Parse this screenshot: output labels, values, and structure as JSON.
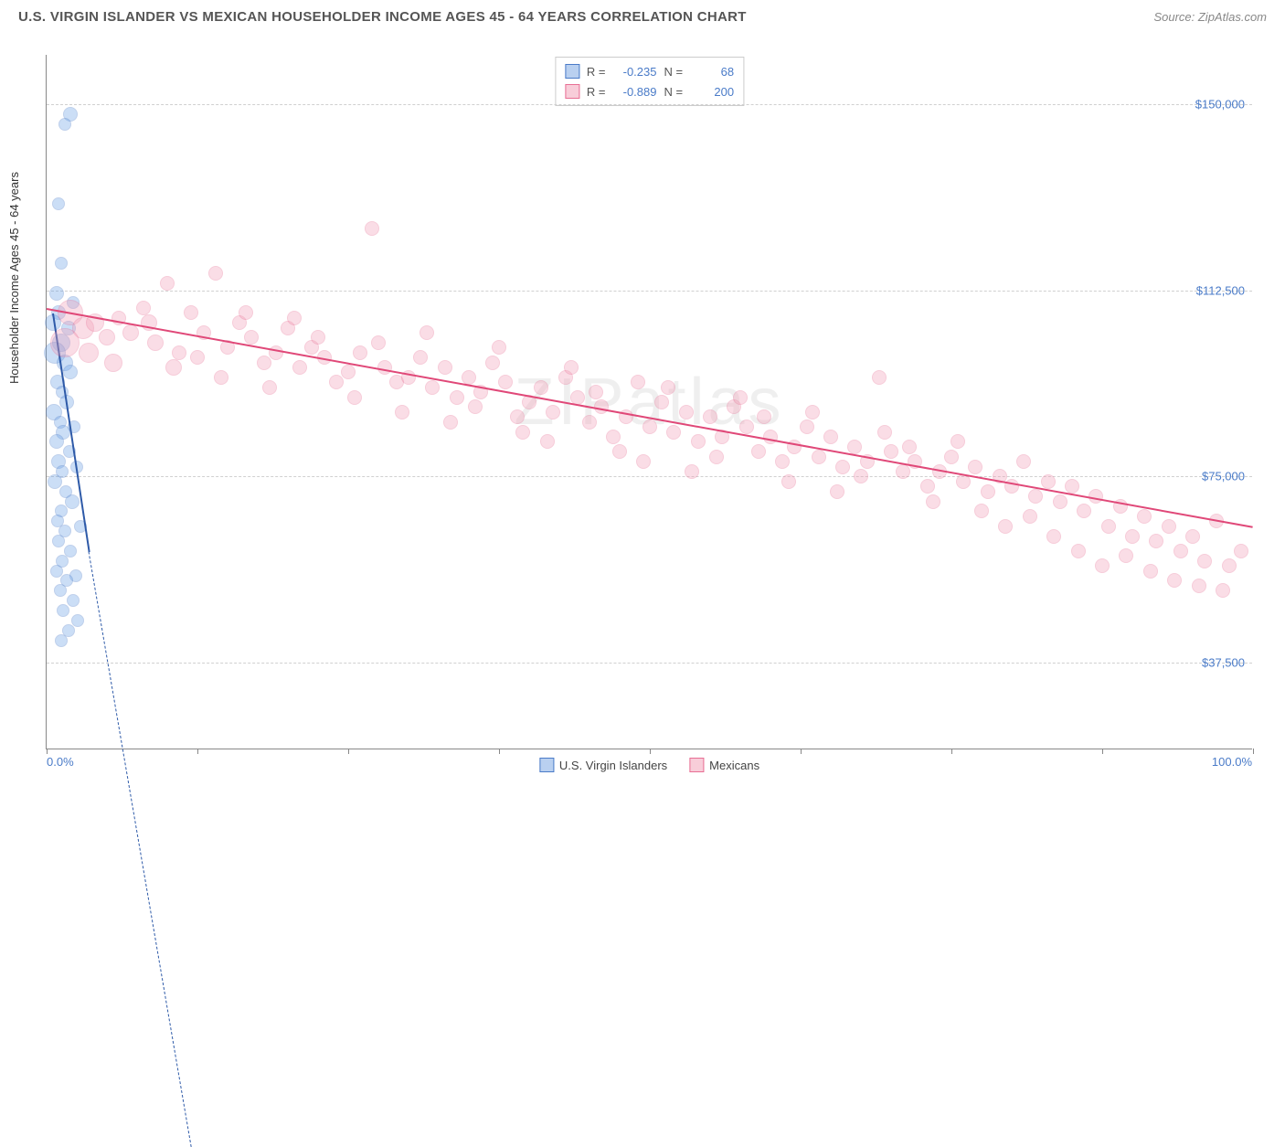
{
  "title": "U.S. VIRGIN ISLANDER VS MEXICAN HOUSEHOLDER INCOME AGES 45 - 64 YEARS CORRELATION CHART",
  "source": "Source: ZipAtlas.com",
  "ylabel": "Householder Income Ages 45 - 64 years",
  "watermark": "ZIPatlas",
  "chart": {
    "type": "scatter",
    "xlim": [
      0,
      100
    ],
    "ylim": [
      20000,
      160000
    ],
    "y_gridlines": [
      37500,
      75000,
      112500,
      150000
    ],
    "ytick_labels": [
      "$37,500",
      "$75,000",
      "$112,500",
      "$150,000"
    ],
    "xtick_positions": [
      0,
      12.5,
      25,
      37.5,
      50,
      62.5,
      75,
      87.5,
      100
    ],
    "x_left_label": "0.0%",
    "x_right_label": "100.0%",
    "background_color": "#ffffff",
    "grid_color": "#d0d0d0",
    "axis_color": "#888888"
  },
  "series": [
    {
      "name": "U.S. Virgin Islanders",
      "fill_color": "#6da3e8",
      "stroke_color": "#4a7bc8",
      "fill_opacity": 0.35,
      "R": "-0.235",
      "N": "68",
      "trend": {
        "x1": 0.5,
        "y1": 108000,
        "x2": 3.5,
        "y2": 60000,
        "color": "#2e5aa8",
        "dash_ext_x2": 12,
        "dash_ext_y2": -60000
      },
      "points": [
        {
          "x": 2.0,
          "y": 148000,
          "r": 8
        },
        {
          "x": 1.5,
          "y": 146000,
          "r": 7
        },
        {
          "x": 1.0,
          "y": 130000,
          "r": 7
        },
        {
          "x": 1.2,
          "y": 118000,
          "r": 7
        },
        {
          "x": 0.8,
          "y": 112000,
          "r": 8
        },
        {
          "x": 2.2,
          "y": 110000,
          "r": 7
        },
        {
          "x": 1.0,
          "y": 108000,
          "r": 8
        },
        {
          "x": 0.5,
          "y": 106000,
          "r": 9
        },
        {
          "x": 1.8,
          "y": 105000,
          "r": 8
        },
        {
          "x": 1.2,
          "y": 102000,
          "r": 10
        },
        {
          "x": 0.7,
          "y": 100000,
          "r": 12
        },
        {
          "x": 1.5,
          "y": 98000,
          "r": 9
        },
        {
          "x": 2.0,
          "y": 96000,
          "r": 8
        },
        {
          "x": 0.9,
          "y": 94000,
          "r": 8
        },
        {
          "x": 1.3,
          "y": 92000,
          "r": 7
        },
        {
          "x": 1.7,
          "y": 90000,
          "r": 8
        },
        {
          "x": 0.6,
          "y": 88000,
          "r": 9
        },
        {
          "x": 1.1,
          "y": 86000,
          "r": 7
        },
        {
          "x": 2.3,
          "y": 85000,
          "r": 7
        },
        {
          "x": 1.4,
          "y": 84000,
          "r": 8
        },
        {
          "x": 0.8,
          "y": 82000,
          "r": 8
        },
        {
          "x": 1.9,
          "y": 80000,
          "r": 7
        },
        {
          "x": 1.0,
          "y": 78000,
          "r": 8
        },
        {
          "x": 2.5,
          "y": 77000,
          "r": 7
        },
        {
          "x": 1.3,
          "y": 76000,
          "r": 7
        },
        {
          "x": 0.7,
          "y": 74000,
          "r": 8
        },
        {
          "x": 1.6,
          "y": 72000,
          "r": 7
        },
        {
          "x": 2.1,
          "y": 70000,
          "r": 8
        },
        {
          "x": 1.2,
          "y": 68000,
          "r": 7
        },
        {
          "x": 0.9,
          "y": 66000,
          "r": 7
        },
        {
          "x": 2.8,
          "y": 65000,
          "r": 7
        },
        {
          "x": 1.5,
          "y": 64000,
          "r": 7
        },
        {
          "x": 1.0,
          "y": 62000,
          "r": 7
        },
        {
          "x": 2.0,
          "y": 60000,
          "r": 7
        },
        {
          "x": 1.3,
          "y": 58000,
          "r": 7
        },
        {
          "x": 0.8,
          "y": 56000,
          "r": 7
        },
        {
          "x": 2.4,
          "y": 55000,
          "r": 7
        },
        {
          "x": 1.7,
          "y": 54000,
          "r": 7
        },
        {
          "x": 1.1,
          "y": 52000,
          "r": 7
        },
        {
          "x": 2.2,
          "y": 50000,
          "r": 7
        },
        {
          "x": 1.4,
          "y": 48000,
          "r": 7
        },
        {
          "x": 2.6,
          "y": 46000,
          "r": 7
        },
        {
          "x": 1.8,
          "y": 44000,
          "r": 7
        },
        {
          "x": 1.2,
          "y": 42000,
          "r": 7
        }
      ]
    },
    {
      "name": "Mexicans",
      "fill_color": "#f2a0b8",
      "stroke_color": "#e86e94",
      "fill_opacity": 0.35,
      "R": "-0.889",
      "N": "200",
      "trend": {
        "x1": 0,
        "y1": 109000,
        "x2": 100,
        "y2": 65000,
        "color": "#e04878"
      },
      "points": [
        {
          "x": 2,
          "y": 108000,
          "r": 14
        },
        {
          "x": 3,
          "y": 105000,
          "r": 12
        },
        {
          "x": 1.5,
          "y": 102000,
          "r": 16
        },
        {
          "x": 4,
          "y": 106000,
          "r": 10
        },
        {
          "x": 5,
          "y": 103000,
          "r": 9
        },
        {
          "x": 3.5,
          "y": 100000,
          "r": 11
        },
        {
          "x": 6,
          "y": 107000,
          "r": 8
        },
        {
          "x": 7,
          "y": 104000,
          "r": 9
        },
        {
          "x": 5.5,
          "y": 98000,
          "r": 10
        },
        {
          "x": 8,
          "y": 109000,
          "r": 8
        },
        {
          "x": 9,
          "y": 102000,
          "r": 9
        },
        {
          "x": 10,
          "y": 114000,
          "r": 8
        },
        {
          "x": 8.5,
          "y": 106000,
          "r": 9
        },
        {
          "x": 11,
          "y": 100000,
          "r": 8
        },
        {
          "x": 12,
          "y": 108000,
          "r": 8
        },
        {
          "x": 10.5,
          "y": 97000,
          "r": 9
        },
        {
          "x": 13,
          "y": 104000,
          "r": 8
        },
        {
          "x": 14,
          "y": 116000,
          "r": 8
        },
        {
          "x": 12.5,
          "y": 99000,
          "r": 8
        },
        {
          "x": 15,
          "y": 101000,
          "r": 8
        },
        {
          "x": 16,
          "y": 106000,
          "r": 8
        },
        {
          "x": 14.5,
          "y": 95000,
          "r": 8
        },
        {
          "x": 17,
          "y": 103000,
          "r": 8
        },
        {
          "x": 18,
          "y": 98000,
          "r": 8
        },
        {
          "x": 16.5,
          "y": 108000,
          "r": 8
        },
        {
          "x": 19,
          "y": 100000,
          "r": 8
        },
        {
          "x": 20,
          "y": 105000,
          "r": 8
        },
        {
          "x": 18.5,
          "y": 93000,
          "r": 8
        },
        {
          "x": 21,
          "y": 97000,
          "r": 8
        },
        {
          "x": 22,
          "y": 101000,
          "r": 8
        },
        {
          "x": 20.5,
          "y": 107000,
          "r": 8
        },
        {
          "x": 23,
          "y": 99000,
          "r": 8
        },
        {
          "x": 24,
          "y": 94000,
          "r": 8
        },
        {
          "x": 22.5,
          "y": 103000,
          "r": 8
        },
        {
          "x": 25,
          "y": 96000,
          "r": 8
        },
        {
          "x": 26,
          "y": 100000,
          "r": 8
        },
        {
          "x": 27,
          "y": 125000,
          "r": 8
        },
        {
          "x": 25.5,
          "y": 91000,
          "r": 8
        },
        {
          "x": 28,
          "y": 97000,
          "r": 8
        },
        {
          "x": 29,
          "y": 94000,
          "r": 8
        },
        {
          "x": 27.5,
          "y": 102000,
          "r": 8
        },
        {
          "x": 30,
          "y": 95000,
          "r": 8
        },
        {
          "x": 31,
          "y": 99000,
          "r": 8
        },
        {
          "x": 29.5,
          "y": 88000,
          "r": 8
        },
        {
          "x": 32,
          "y": 93000,
          "r": 8
        },
        {
          "x": 33,
          "y": 97000,
          "r": 8
        },
        {
          "x": 31.5,
          "y": 104000,
          "r": 8
        },
        {
          "x": 34,
          "y": 91000,
          "r": 8
        },
        {
          "x": 35,
          "y": 95000,
          "r": 8
        },
        {
          "x": 33.5,
          "y": 86000,
          "r": 8
        },
        {
          "x": 36,
          "y": 92000,
          "r": 8
        },
        {
          "x": 37,
          "y": 98000,
          "r": 8
        },
        {
          "x": 35.5,
          "y": 89000,
          "r": 8
        },
        {
          "x": 38,
          "y": 94000,
          "r": 8
        },
        {
          "x": 39,
          "y": 87000,
          "r": 8
        },
        {
          "x": 37.5,
          "y": 101000,
          "r": 8
        },
        {
          "x": 40,
          "y": 90000,
          "r": 8
        },
        {
          "x": 41,
          "y": 93000,
          "r": 8
        },
        {
          "x": 39.5,
          "y": 84000,
          "r": 8
        },
        {
          "x": 42,
          "y": 88000,
          "r": 8
        },
        {
          "x": 43,
          "y": 95000,
          "r": 8
        },
        {
          "x": 41.5,
          "y": 82000,
          "r": 8
        },
        {
          "x": 44,
          "y": 91000,
          "r": 8
        },
        {
          "x": 45,
          "y": 86000,
          "r": 8
        },
        {
          "x": 43.5,
          "y": 97000,
          "r": 8
        },
        {
          "x": 46,
          "y": 89000,
          "r": 8
        },
        {
          "x": 47,
          "y": 83000,
          "r": 8
        },
        {
          "x": 45.5,
          "y": 92000,
          "r": 8
        },
        {
          "x": 48,
          "y": 87000,
          "r": 8
        },
        {
          "x": 49,
          "y": 94000,
          "r": 8
        },
        {
          "x": 47.5,
          "y": 80000,
          "r": 8
        },
        {
          "x": 50,
          "y": 85000,
          "r": 8
        },
        {
          "x": 51,
          "y": 90000,
          "r": 8
        },
        {
          "x": 49.5,
          "y": 78000,
          "r": 8
        },
        {
          "x": 52,
          "y": 84000,
          "r": 8
        },
        {
          "x": 53,
          "y": 88000,
          "r": 8
        },
        {
          "x": 51.5,
          "y": 93000,
          "r": 8
        },
        {
          "x": 54,
          "y": 82000,
          "r": 8
        },
        {
          "x": 55,
          "y": 87000,
          "r": 8
        },
        {
          "x": 53.5,
          "y": 76000,
          "r": 8
        },
        {
          "x": 56,
          "y": 83000,
          "r": 8
        },
        {
          "x": 57,
          "y": 89000,
          "r": 8
        },
        {
          "x": 55.5,
          "y": 79000,
          "r": 8
        },
        {
          "x": 58,
          "y": 85000,
          "r": 8
        },
        {
          "x": 59,
          "y": 80000,
          "r": 8
        },
        {
          "x": 57.5,
          "y": 91000,
          "r": 8
        },
        {
          "x": 60,
          "y": 83000,
          "r": 8
        },
        {
          "x": 61,
          "y": 78000,
          "r": 8
        },
        {
          "x": 59.5,
          "y": 87000,
          "r": 8
        },
        {
          "x": 62,
          "y": 81000,
          "r": 8
        },
        {
          "x": 63,
          "y": 85000,
          "r": 8
        },
        {
          "x": 61.5,
          "y": 74000,
          "r": 8
        },
        {
          "x": 64,
          "y": 79000,
          "r": 8
        },
        {
          "x": 65,
          "y": 83000,
          "r": 8
        },
        {
          "x": 63.5,
          "y": 88000,
          "r": 8
        },
        {
          "x": 66,
          "y": 77000,
          "r": 8
        },
        {
          "x": 67,
          "y": 81000,
          "r": 8
        },
        {
          "x": 65.5,
          "y": 72000,
          "r": 8
        },
        {
          "x": 68,
          "y": 78000,
          "r": 8
        },
        {
          "x": 69,
          "y": 95000,
          "r": 8
        },
        {
          "x": 67.5,
          "y": 75000,
          "r": 8
        },
        {
          "x": 70,
          "y": 80000,
          "r": 8
        },
        {
          "x": 71,
          "y": 76000,
          "r": 8
        },
        {
          "x": 69.5,
          "y": 84000,
          "r": 8
        },
        {
          "x": 72,
          "y": 78000,
          "r": 8
        },
        {
          "x": 73,
          "y": 73000,
          "r": 8
        },
        {
          "x": 71.5,
          "y": 81000,
          "r": 8
        },
        {
          "x": 74,
          "y": 76000,
          "r": 8
        },
        {
          "x": 75,
          "y": 79000,
          "r": 8
        },
        {
          "x": 73.5,
          "y": 70000,
          "r": 8
        },
        {
          "x": 76,
          "y": 74000,
          "r": 8
        },
        {
          "x": 77,
          "y": 77000,
          "r": 8
        },
        {
          "x": 75.5,
          "y": 82000,
          "r": 8
        },
        {
          "x": 78,
          "y": 72000,
          "r": 8
        },
        {
          "x": 79,
          "y": 75000,
          "r": 8
        },
        {
          "x": 77.5,
          "y": 68000,
          "r": 8
        },
        {
          "x": 80,
          "y": 73000,
          "r": 8
        },
        {
          "x": 81,
          "y": 78000,
          "r": 8
        },
        {
          "x": 79.5,
          "y": 65000,
          "r": 8
        },
        {
          "x": 82,
          "y": 71000,
          "r": 8
        },
        {
          "x": 83,
          "y": 74000,
          "r": 8
        },
        {
          "x": 81.5,
          "y": 67000,
          "r": 8
        },
        {
          "x": 84,
          "y": 70000,
          "r": 8
        },
        {
          "x": 85,
          "y": 73000,
          "r": 8
        },
        {
          "x": 83.5,
          "y": 63000,
          "r": 8
        },
        {
          "x": 86,
          "y": 68000,
          "r": 8
        },
        {
          "x": 87,
          "y": 71000,
          "r": 8
        },
        {
          "x": 85.5,
          "y": 60000,
          "r": 8
        },
        {
          "x": 88,
          "y": 65000,
          "r": 8
        },
        {
          "x": 89,
          "y": 69000,
          "r": 8
        },
        {
          "x": 87.5,
          "y": 57000,
          "r": 8
        },
        {
          "x": 90,
          "y": 63000,
          "r": 8
        },
        {
          "x": 91,
          "y": 67000,
          "r": 8
        },
        {
          "x": 89.5,
          "y": 59000,
          "r": 8
        },
        {
          "x": 92,
          "y": 62000,
          "r": 8
        },
        {
          "x": 93,
          "y": 65000,
          "r": 8
        },
        {
          "x": 91.5,
          "y": 56000,
          "r": 8
        },
        {
          "x": 94,
          "y": 60000,
          "r": 8
        },
        {
          "x": 95,
          "y": 63000,
          "r": 8
        },
        {
          "x": 93.5,
          "y": 54000,
          "r": 8
        },
        {
          "x": 96,
          "y": 58000,
          "r": 8
        },
        {
          "x": 97,
          "y": 66000,
          "r": 8
        },
        {
          "x": 95.5,
          "y": 53000,
          "r": 8
        },
        {
          "x": 98,
          "y": 57000,
          "r": 8
        },
        {
          "x": 99,
          "y": 60000,
          "r": 8
        },
        {
          "x": 97.5,
          "y": 52000,
          "r": 8
        }
      ]
    }
  ],
  "legend": {
    "items": [
      {
        "label": "U.S. Virgin Islanders",
        "fill": "#b9d0f0",
        "stroke": "#4a7bc8"
      },
      {
        "label": "Mexicans",
        "fill": "#f8cdd9",
        "stroke": "#e86e94"
      }
    ]
  },
  "stats_labels": {
    "R": "R =",
    "N": "N ="
  }
}
